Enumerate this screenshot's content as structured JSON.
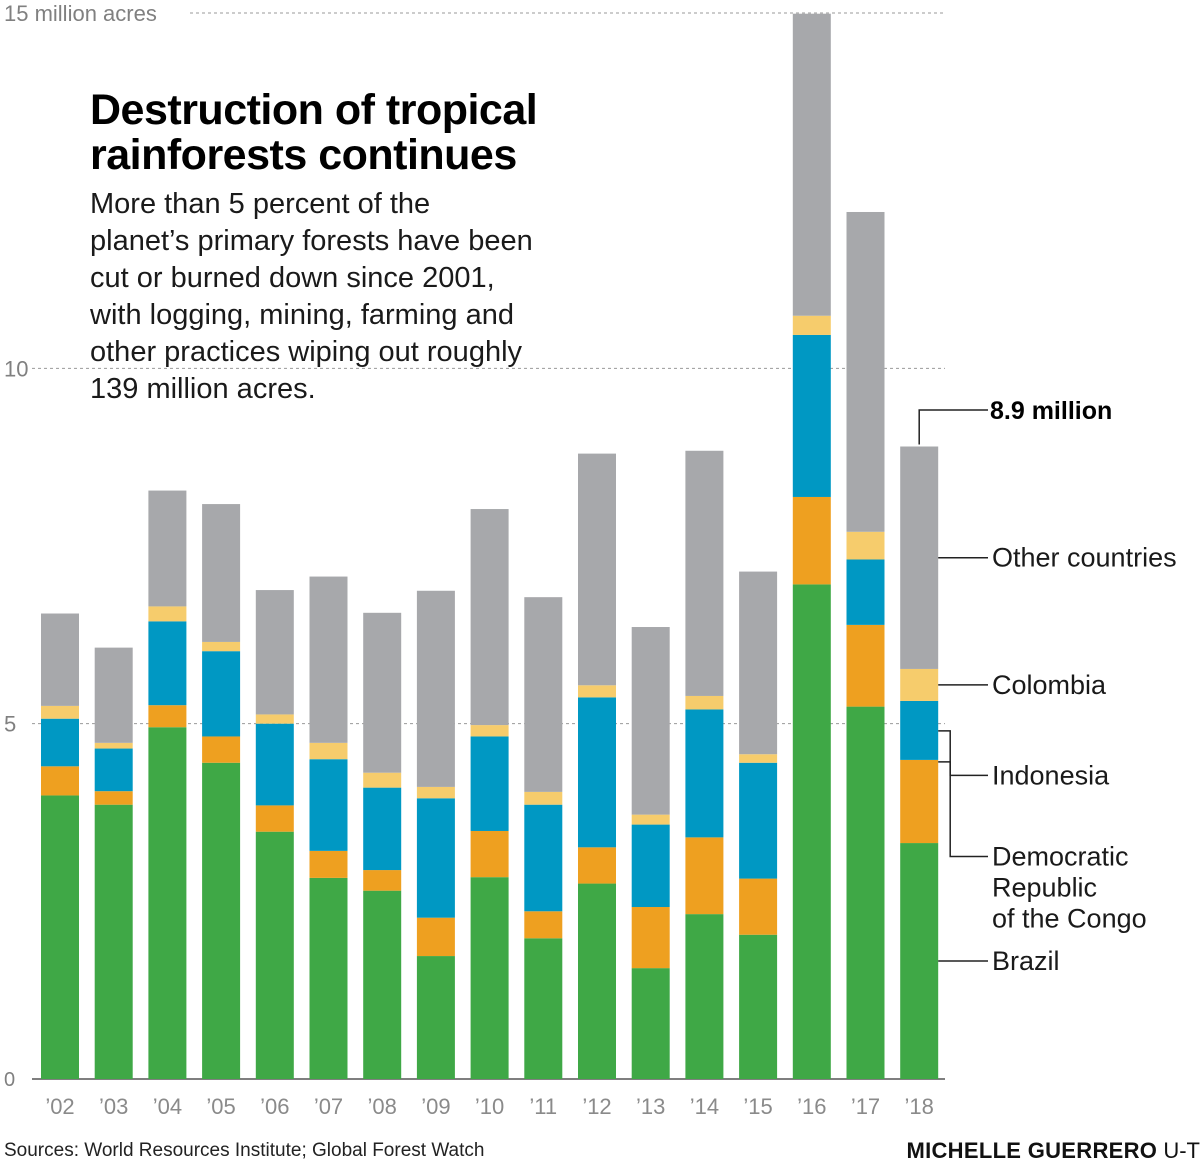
{
  "title": "Destruction of tropical\nrainforests continues",
  "subtitle": "More than 5 percent of the\nplanet’s primary forests have been\ncut or burned down since 2001,\nwith logging, mining, farming and\nother practices wiping out roughly\n139 million acres.",
  "source": "Sources: World Resources Institute; Global Forest Watch",
  "credit": {
    "name": "MICHELLE GUERRERO",
    "org": "U-T"
  },
  "chart_data": {
    "type": "bar",
    "stacked": true,
    "categories": [
      "’02",
      "’03",
      "’04",
      "’05",
      "’06",
      "’07",
      "’08",
      "’09",
      "’10",
      "’11",
      "’12",
      "’13",
      "’14",
      "’15",
      "’16",
      "’17",
      "’18"
    ],
    "series": [
      {
        "name": "Brazil",
        "color": "#3fa846",
        "values": [
          3.99,
          3.86,
          4.95,
          4.45,
          3.48,
          2.83,
          2.65,
          1.73,
          2.84,
          1.98,
          2.75,
          1.56,
          2.32,
          2.03,
          6.96,
          5.24,
          3.32
        ]
      },
      {
        "name": "Democratic Republic of the Congo",
        "color": "#eea020",
        "values": [
          0.41,
          0.19,
          0.31,
          0.37,
          0.37,
          0.38,
          0.29,
          0.54,
          0.65,
          0.38,
          0.51,
          0.86,
          1.08,
          0.79,
          1.23,
          1.15,
          1.17
        ]
      },
      {
        "name": "Indonesia",
        "color": "#0098c3",
        "values": [
          0.67,
          0.6,
          1.18,
          1.2,
          1.15,
          1.29,
          1.16,
          1.68,
          1.33,
          1.5,
          2.11,
          1.16,
          1.8,
          1.63,
          2.28,
          0.92,
          0.83
        ]
      },
      {
        "name": "Colombia",
        "color": "#f6cc6c",
        "values": [
          0.18,
          0.08,
          0.21,
          0.13,
          0.13,
          0.23,
          0.21,
          0.16,
          0.16,
          0.18,
          0.17,
          0.14,
          0.19,
          0.12,
          0.27,
          0.39,
          0.45
        ]
      },
      {
        "name": "Other countries",
        "color": "#a7a8ab",
        "values": [
          1.3,
          1.34,
          1.63,
          1.94,
          1.75,
          2.34,
          2.25,
          2.76,
          3.04,
          2.74,
          3.26,
          2.64,
          3.45,
          2.57,
          4.25,
          4.5,
          3.13
        ]
      }
    ],
    "totals_label": {
      "category": "’18",
      "text": "8.9 million"
    },
    "ylim": [
      0,
      15
    ],
    "yticks": [
      0,
      5,
      10,
      15
    ],
    "ytick_labels": [
      "0",
      "5",
      "10",
      "15 million acres"
    ],
    "legend_placement": "right",
    "grid": true,
    "xlabel": "",
    "ylabel": ""
  }
}
